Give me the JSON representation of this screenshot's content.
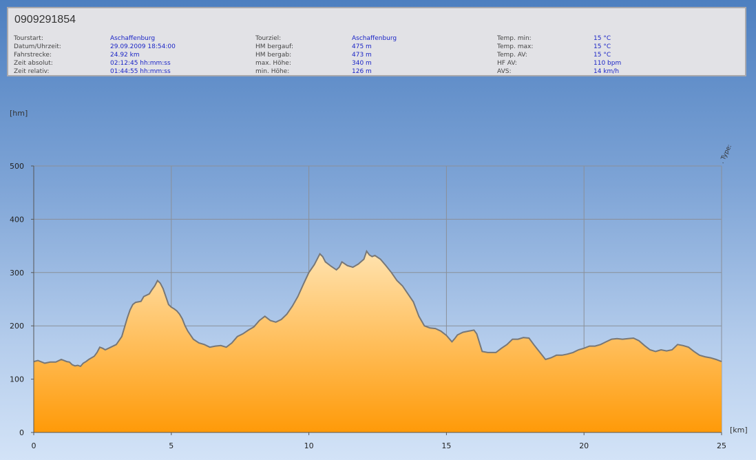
{
  "header": {
    "tour_id": "0909291854",
    "rows": [
      [
        {
          "label": "Tourstart:",
          "value": "Aschaffenburg"
        },
        {
          "label": "Tourziel:",
          "value": "Aschaffenburg"
        },
        {
          "label": "Temp. min:",
          "value": "15 °C"
        }
      ],
      [
        {
          "label": "Datum/Uhrzeit:",
          "value": "29.09.2009 18:54:00"
        },
        {
          "label": "HM bergauf:",
          "value": "475 m"
        },
        {
          "label": "Temp. max:",
          "value": "15 °C"
        }
      ],
      [
        {
          "label": "Fahrstrecke:",
          "value": "24.92 km"
        },
        {
          "label": "HM bergab:",
          "value": "473 m"
        },
        {
          "label": "Temp. AV:",
          "value": "15 °C"
        }
      ],
      [
        {
          "label": "Zeit absolut:",
          "value": "02:12:45 hh:mm:ss"
        },
        {
          "label": "max. Höhe:",
          "value": "340 m"
        },
        {
          "label": "HF AV:",
          "value": "110 bpm"
        }
      ],
      [
        {
          "label": "Zeit relativ:",
          "value": "01:44:55 hh:mm:ss"
        },
        {
          "label": "min. Höhe:",
          "value": "126 m"
        },
        {
          "label": "AVS:",
          "value": "14 km/h"
        }
      ]
    ]
  },
  "chart_data": {
    "type": "area",
    "ylabel": "[hm]",
    "xlabel": "[km]",
    "side_label": ". Type:",
    "xlim": [
      0,
      25
    ],
    "ylim": [
      0,
      500
    ],
    "x_ticks": [
      0,
      5,
      10,
      15,
      20,
      25
    ],
    "y_ticks": [
      0,
      100,
      200,
      300,
      400,
      500
    ],
    "grid": true,
    "colors": {
      "fill_top": "#ffe3b0",
      "fill_bottom": "#ff9a08",
      "line": "#777777",
      "grid": "#8a8f98",
      "axis": "#555555"
    },
    "x": [
      0,
      0.15,
      0.4,
      0.6,
      0.8,
      1.0,
      1.2,
      1.3,
      1.4,
      1.5,
      1.6,
      1.7,
      1.8,
      1.9,
      2.0,
      2.2,
      2.3,
      2.4,
      2.5,
      2.6,
      2.8,
      3.0,
      3.2,
      3.4,
      3.5,
      3.6,
      3.7,
      3.8,
      3.9,
      4.0,
      4.2,
      4.3,
      4.4,
      4.5,
      4.6,
      4.7,
      4.8,
      4.9,
      5.0,
      5.1,
      5.2,
      5.3,
      5.4,
      5.5,
      5.6,
      5.8,
      6.0,
      6.2,
      6.4,
      6.6,
      6.8,
      7.0,
      7.2,
      7.4,
      7.6,
      7.8,
      8.0,
      8.2,
      8.4,
      8.6,
      8.8,
      9.0,
      9.2,
      9.4,
      9.6,
      9.8,
      10.0,
      10.2,
      10.3,
      10.4,
      10.5,
      10.6,
      10.8,
      11.0,
      11.1,
      11.2,
      11.4,
      11.6,
      11.8,
      12.0,
      12.1,
      12.2,
      12.3,
      12.4,
      12.6,
      12.8,
      13.0,
      13.2,
      13.4,
      13.6,
      13.8,
      14.0,
      14.2,
      14.4,
      14.6,
      14.8,
      15.0,
      15.2,
      15.3,
      15.4,
      15.6,
      15.8,
      16.0,
      16.1,
      16.3,
      16.5,
      16.7,
      16.8,
      17.0,
      17.2,
      17.4,
      17.6,
      17.8,
      18.0,
      18.2,
      18.4,
      18.6,
      18.8,
      19.0,
      19.2,
      19.4,
      19.6,
      19.8,
      20.0,
      20.2,
      20.4,
      20.6,
      20.8,
      21.0,
      21.2,
      21.4,
      21.6,
      21.8,
      22.0,
      22.2,
      22.4,
      22.6,
      22.8,
      23.0,
      23.2,
      23.4,
      23.6,
      23.8,
      24.0,
      24.2,
      24.4,
      24.6,
      24.8,
      25.0
    ],
    "y": [
      133,
      135,
      130,
      132,
      132,
      137,
      133,
      132,
      127,
      125,
      126,
      124,
      130,
      133,
      137,
      143,
      150,
      160,
      158,
      155,
      160,
      165,
      180,
      215,
      230,
      240,
      244,
      245,
      246,
      255,
      260,
      268,
      275,
      285,
      280,
      270,
      255,
      240,
      235,
      232,
      228,
      222,
      213,
      200,
      190,
      175,
      168,
      165,
      160,
      162,
      163,
      160,
      168,
      180,
      185,
      192,
      198,
      210,
      218,
      210,
      207,
      212,
      222,
      237,
      255,
      278,
      300,
      315,
      325,
      335,
      330,
      320,
      312,
      305,
      310,
      320,
      313,
      310,
      316,
      325,
      340,
      333,
      330,
      332,
      325,
      313,
      300,
      285,
      275,
      260,
      245,
      218,
      200,
      196,
      195,
      190,
      182,
      170,
      176,
      183,
      188,
      190,
      192,
      185,
      152,
      150,
      150,
      150,
      158,
      165,
      175,
      175,
      178,
      177,
      163,
      150,
      137,
      140,
      145,
      145,
      147,
      150,
      155,
      158,
      162,
      162,
      165,
      170,
      175,
      176,
      175,
      176,
      177,
      172,
      163,
      155,
      152,
      155,
      153,
      155,
      165,
      163,
      160,
      152,
      145,
      142,
      140,
      137,
      133
    ]
  }
}
